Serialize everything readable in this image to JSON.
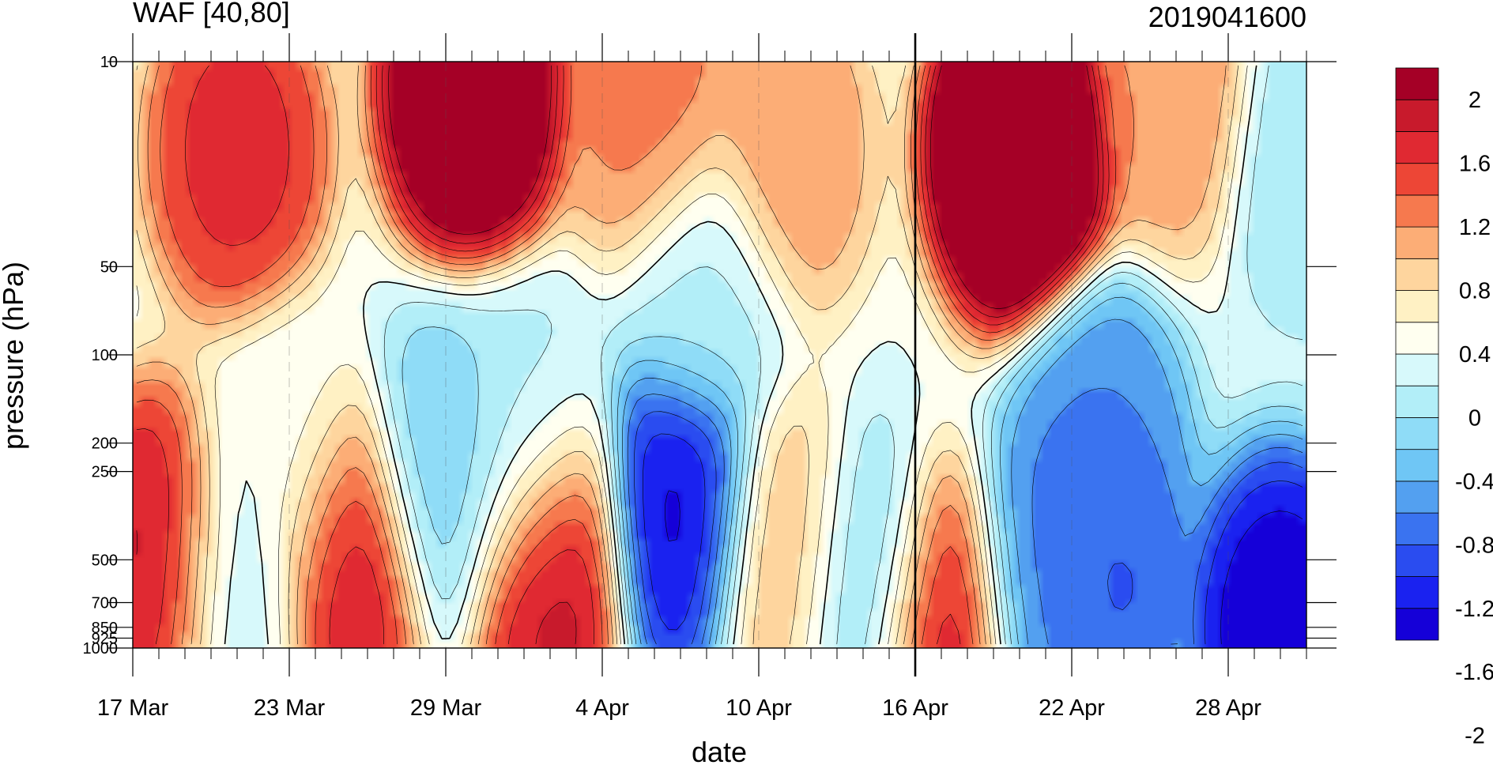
{
  "chart_data": {
    "type": "heatmap",
    "title": "WAF [40,80]",
    "subtitle_right": "2019041600",
    "xlabel": "date",
    "ylabel": "pressure (hPa)",
    "x_ticks": [
      "17 Mar",
      "23 Mar",
      "29 Mar",
      "4 Apr",
      "10 Apr",
      "16 Apr",
      "22 Apr",
      "28 Apr"
    ],
    "x_range": [
      "17 Mar",
      "1 May"
    ],
    "y_scale": "log",
    "y_ticks": [
      10,
      50,
      100,
      200,
      250,
      500,
      700,
      850,
      925,
      1000
    ],
    "y_tick_labels": [
      "10",
      "50",
      "100",
      "200",
      "250",
      "500",
      "700",
      "850",
      "925",
      "1000"
    ],
    "y_range": [
      1000,
      10
    ],
    "marker_date": "16 Apr",
    "colorbar": {
      "levels": [
        -2,
        -1.8,
        -1.6,
        -1.4,
        -1.2,
        -1,
        -0.8,
        -0.6,
        -0.4,
        -0.2,
        0,
        0.2,
        0.4,
        0.6,
        0.8,
        1,
        1.2,
        1.4,
        1.6,
        1.8,
        2
      ],
      "labels": [
        "2",
        "1.6",
        "1.2",
        "0.8",
        "0.4",
        "0",
        "-0.4",
        "-0.8",
        "-1.2",
        "-1.6",
        "-2"
      ],
      "colors": [
        "#1500d8",
        "#1a22f0",
        "#2a4cf0",
        "#3a73f0",
        "#53a0f0",
        "#6fc6f5",
        "#8fdcf7",
        "#b2eef8",
        "#d7f9fb",
        "#fffff0",
        "#fff1c4",
        "#fed59e",
        "#fcad76",
        "#f6794e",
        "#ed4636",
        "#e02932",
        "#c81a2c",
        "#a50026"
      ],
      "placement": "right"
    },
    "anomaly_centers": [
      {
        "date": "18 Mar",
        "p": 500,
        "v": 1.5
      },
      {
        "date": "21 Mar",
        "p": 20,
        "v": 1.3
      },
      {
        "date": "25 Mar",
        "p": 500,
        "v": 1.5
      },
      {
        "date": "23 Mar",
        "p": 250,
        "v": 0.0
      },
      {
        "date": "21 Mar",
        "p": 600,
        "v": -0.3
      },
      {
        "date": "30 Mar",
        "p": 12,
        "v": 2.3
      },
      {
        "date": "1 Apr",
        "p": 200,
        "v": -0.3
      },
      {
        "date": "29 Mar",
        "p": 250,
        "v": -0.6
      },
      {
        "date": "2 Apr",
        "p": 500,
        "v": 1.6
      },
      {
        "date": "7 Apr",
        "p": 350,
        "v": -1.7
      },
      {
        "date": "8 Apr",
        "p": 60,
        "v": -0.3
      },
      {
        "date": "6 Apr",
        "p": 15,
        "v": 0.9
      },
      {
        "date": "11 Apr",
        "p": 20,
        "v": 0.8
      },
      {
        "date": "11 Apr",
        "p": 500,
        "v": 0.7
      },
      {
        "date": "14 Apr",
        "p": 650,
        "v": -0.6
      },
      {
        "date": "20 Apr",
        "p": 20,
        "v": 2.6
      },
      {
        "date": "17 Apr",
        "p": 950,
        "v": 1.5
      },
      {
        "date": "23 Apr",
        "p": 500,
        "v": -1.3
      },
      {
        "date": "23 Apr",
        "p": 200,
        "v": -1.0
      },
      {
        "date": "21 Apr",
        "p": 700,
        "v": -1.0
      },
      {
        "date": "30 Apr",
        "p": 850,
        "v": -1.8
      },
      {
        "date": "26 Apr",
        "p": 12,
        "v": 0.8
      },
      {
        "date": "1 May",
        "p": 20,
        "v": -0.4
      }
    ]
  }
}
